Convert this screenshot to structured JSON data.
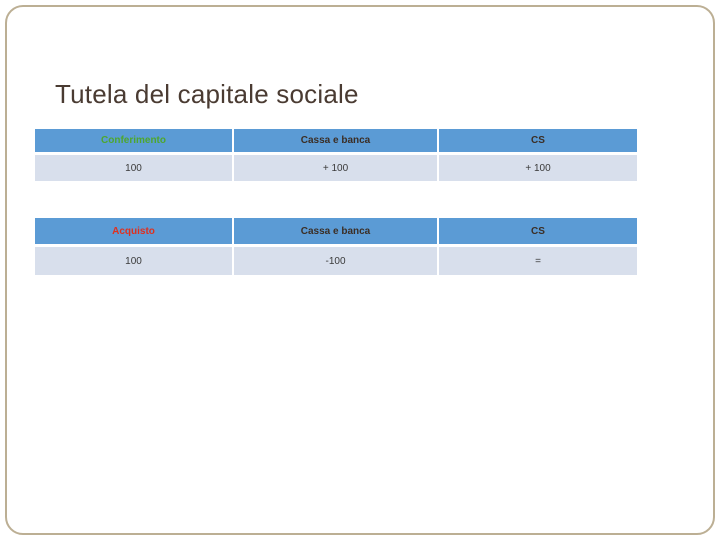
{
  "slide": {
    "title": "Tutela del capitale sociale"
  },
  "colors": {
    "header_background": "#5b9bd5",
    "data_row_background": "#d8dfec",
    "title_text": "#4a3b32",
    "conferimento_text": "#4ea72e",
    "acquisto_text": "#e0301e",
    "header_text": "#3b2e25",
    "slide_border": "#bcaf94"
  },
  "tables": [
    {
      "name": "conferimento-table",
      "header": [
        {
          "label": "Conferimento"
        },
        {
          "label": "Cassa e banca"
        },
        {
          "label": "CS"
        }
      ],
      "row": [
        {
          "value": "100"
        },
        {
          "value": "+ 100"
        },
        {
          "value": "+ 100"
        }
      ]
    },
    {
      "name": "acquisto-table",
      "header": [
        {
          "label": "Acquisto"
        },
        {
          "label": "Cassa e banca"
        },
        {
          "label": "CS"
        }
      ],
      "row": [
        {
          "value": "100"
        },
        {
          "value": "-100"
        },
        {
          "value": "="
        }
      ]
    }
  ]
}
